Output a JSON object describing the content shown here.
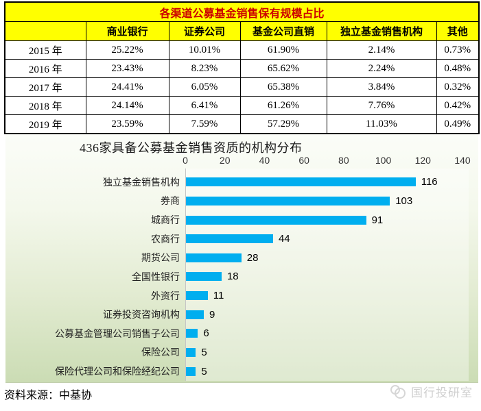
{
  "table": {
    "title": "各渠道公募基金销售保有规模占比",
    "columns": [
      "",
      "商业银行",
      "证券公司",
      "基金公司直销",
      "独立基金销售机构",
      "其他"
    ],
    "rows": [
      [
        "2015 年",
        "25.22%",
        "10.01%",
        "61.90%",
        "2.14%",
        "0.73%"
      ],
      [
        "2016 年",
        "23.43%",
        "8.23%",
        "65.62%",
        "2.24%",
        "0.48%"
      ],
      [
        "2017 年",
        "24.41%",
        "6.05%",
        "65.38%",
        "3.84%",
        "0.32%"
      ],
      [
        "2018 年",
        "24.14%",
        "6.41%",
        "61.26%",
        "7.76%",
        "0.42%"
      ],
      [
        "2019 年",
        "23.59%",
        "7.59%",
        "57.29%",
        "11.03%",
        "0.49%"
      ]
    ],
    "header_bg": "#FFFF00",
    "title_color": "#CC0000"
  },
  "chart_data": {
    "type": "bar",
    "orientation": "horizontal",
    "title": "436家具备公募基金销售资质的机构分布",
    "categories": [
      "独立基金销售机构",
      "券商",
      "城商行",
      "农商行",
      "期货公司",
      "全国性银行",
      "外资行",
      "证券投资咨询机构",
      "公募基金管理公司销售子公司",
      "保险公司",
      "保险代理公司和保险经纪公司"
    ],
    "values": [
      116,
      103,
      91,
      44,
      28,
      18,
      11,
      9,
      6,
      5,
      5
    ],
    "xlim": [
      0,
      140
    ],
    "xticks": [
      0,
      20,
      40,
      60,
      80,
      100,
      120,
      140
    ],
    "bar_color": "#00AEEF",
    "data_labels": true,
    "legend": "none",
    "background": {
      "top": "#FBFDF8",
      "bottom": "#CBDCB4"
    }
  },
  "footer": {
    "source": "资料来源：中基协"
  },
  "watermark": {
    "label": "国行投研室"
  }
}
